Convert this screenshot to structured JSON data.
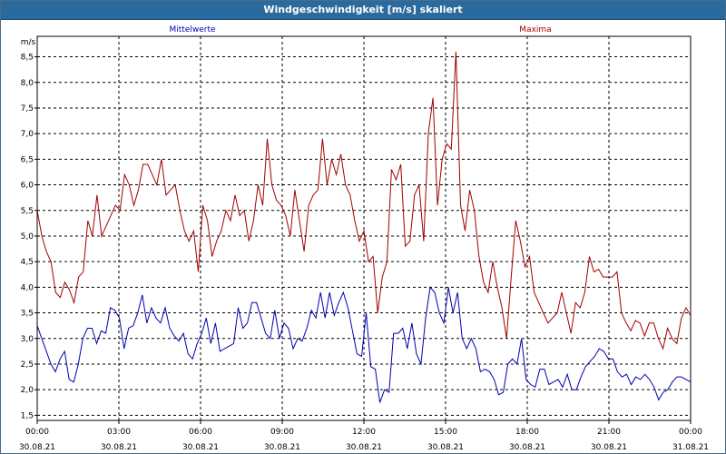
{
  "window": {
    "title": "Windgeschwindigkeit [m/s] skaliert"
  },
  "chart_data": {
    "type": "line",
    "title": "Windgeschwindigkeit [m/s] skaliert",
    "ylabel": "m/s",
    "xlabel": "",
    "ylim": [
      1.4,
      8.9
    ],
    "xlim": [
      0,
      24
    ],
    "yticks": [
      1.5,
      2.0,
      2.5,
      3.0,
      3.5,
      4.0,
      4.5,
      5.0,
      5.5,
      6.0,
      6.5,
      7.0,
      7.5,
      8.0,
      8.5
    ],
    "ytick_labels": [
      "1,5",
      "2,0",
      "2,5",
      "3,0",
      "3,5",
      "4,0",
      "4,5",
      "5,0",
      "5,5",
      "6,0",
      "6,5",
      "7,0",
      "7,5",
      "8,0",
      "8,5"
    ],
    "xticks": [
      0,
      3,
      6,
      9,
      12,
      15,
      18,
      21,
      24
    ],
    "xtick_time": [
      "00:00",
      "03:00",
      "06:00",
      "09:00",
      "12:00",
      "15:00",
      "18:00",
      "21:00",
      "00:00"
    ],
    "xtick_date": [
      "30.08.21",
      "30.08.21",
      "30.08.21",
      "30.08.21",
      "30.08.21",
      "30.08.21",
      "30.08.21",
      "30.08.21",
      "31.08.21"
    ],
    "grid": true,
    "series": [
      {
        "name": "Mittelwerte",
        "color": "#0000b0",
        "values": [
          3.25,
          3.0,
          2.75,
          2.5,
          2.35,
          2.6,
          2.75,
          2.2,
          2.15,
          2.5,
          3.0,
          3.2,
          3.2,
          2.9,
          3.15,
          3.1,
          3.6,
          3.55,
          3.4,
          2.8,
          3.2,
          3.25,
          3.5,
          3.85,
          3.3,
          3.6,
          3.4,
          3.3,
          3.6,
          3.2,
          3.05,
          2.95,
          3.1,
          2.7,
          2.6,
          2.9,
          3.1,
          3.4,
          2.9,
          3.3,
          2.75,
          2.8,
          2.85,
          2.9,
          3.6,
          3.2,
          3.3,
          3.7,
          3.7,
          3.4,
          3.1,
          3.0,
          3.55,
          3.0,
          3.3,
          3.2,
          2.8,
          3.0,
          2.95,
          3.2,
          3.55,
          3.4,
          3.9,
          3.4,
          3.9,
          3.45,
          3.7,
          3.9,
          3.6,
          3.15,
          2.7,
          2.65,
          3.5,
          2.45,
          2.4,
          1.75,
          2.0,
          1.95,
          3.1,
          3.1,
          3.2,
          2.8,
          3.3,
          2.7,
          2.5,
          3.4,
          4.0,
          3.9,
          3.5,
          3.3,
          4.0,
          3.5,
          3.9,
          3.0,
          2.8,
          3.0,
          2.8,
          2.35,
          2.4,
          2.35,
          2.2,
          1.9,
          1.95,
          2.5,
          2.6,
          2.5,
          3.0,
          2.2,
          2.1,
          2.05,
          2.4,
          2.4,
          2.1,
          2.15,
          2.2,
          2.05,
          2.3,
          2.0,
          2.0,
          2.25,
          2.45,
          2.55,
          2.65,
          2.8,
          2.75,
          2.6,
          2.6,
          2.35,
          2.25,
          2.3,
          2.1,
          2.25,
          2.2,
          2.3,
          2.2,
          2.05,
          1.8,
          1.95,
          2.0,
          2.15,
          2.25,
          2.25,
          2.2,
          2.15
        ]
      },
      {
        "name": "Maxima",
        "color": "#a00000",
        "values": [
          5.5,
          5.0,
          4.7,
          4.5,
          3.9,
          3.8,
          4.1,
          3.95,
          3.7,
          4.2,
          4.3,
          5.3,
          5.0,
          5.8,
          5.0,
          5.2,
          5.4,
          5.6,
          5.5,
          6.2,
          6.0,
          5.6,
          5.9,
          6.4,
          6.4,
          6.2,
          6.0,
          6.5,
          5.8,
          5.9,
          6.0,
          5.5,
          5.1,
          4.9,
          5.1,
          4.3,
          5.6,
          5.3,
          4.6,
          4.9,
          5.1,
          5.5,
          5.3,
          5.8,
          5.4,
          5.5,
          4.9,
          5.3,
          6.0,
          5.6,
          6.9,
          6.0,
          5.7,
          5.6,
          5.4,
          5.0,
          5.9,
          5.3,
          4.7,
          5.6,
          5.8,
          5.9,
          6.9,
          6.0,
          6.5,
          6.2,
          6.6,
          6.0,
          5.8,
          5.3,
          4.9,
          5.1,
          4.5,
          4.6,
          3.5,
          4.2,
          4.5,
          6.3,
          6.1,
          6.4,
          4.8,
          4.9,
          5.8,
          6.0,
          4.9,
          7.0,
          7.7,
          5.6,
          6.5,
          6.8,
          6.7,
          8.6,
          5.6,
          5.1,
          5.9,
          5.5,
          4.6,
          4.1,
          3.9,
          4.5,
          4.0,
          3.6,
          3.0,
          4.2,
          5.3,
          4.9,
          4.4,
          4.6,
          3.9,
          3.7,
          3.5,
          3.3,
          3.4,
          3.5,
          3.9,
          3.5,
          3.1,
          3.7,
          3.6,
          3.9,
          4.6,
          4.3,
          4.35,
          4.2,
          4.2,
          4.2,
          4.3,
          3.5,
          3.3,
          3.15,
          3.35,
          3.3,
          3.05,
          3.3,
          3.3,
          3.0,
          2.8,
          3.2,
          3.0,
          2.9,
          3.4,
          3.6,
          3.45
        ]
      }
    ]
  }
}
